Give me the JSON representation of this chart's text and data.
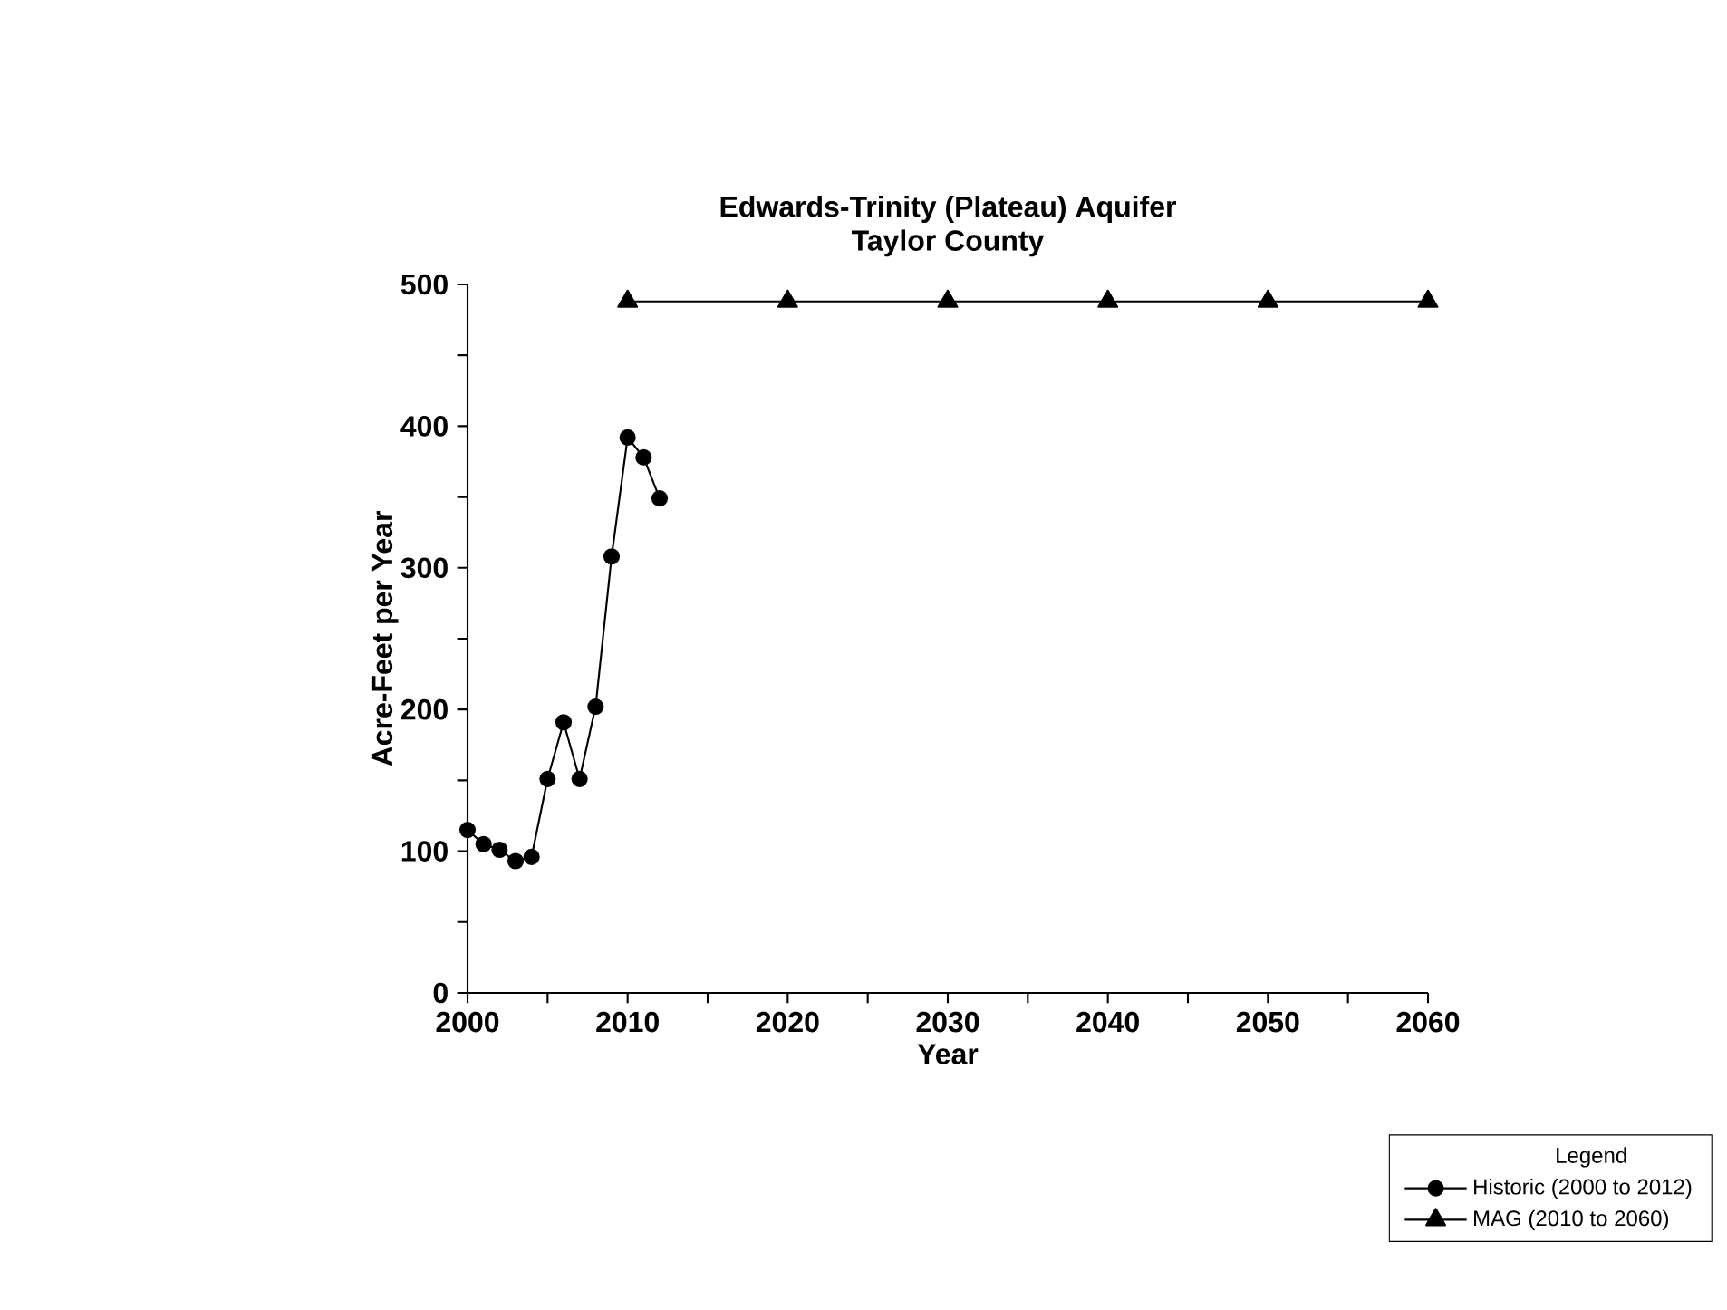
{
  "chart_data": {
    "type": "line",
    "title": "Edwards-Trinity (Plateau) Aquifer",
    "subtitle": "Taylor County",
    "xlabel": "Year",
    "ylabel": "Acre-Feet per Year",
    "legend_title": "Legend",
    "legend": "bottom right",
    "grid": false,
    "xlim": [
      2000,
      2060
    ],
    "ylim": [
      0,
      500
    ],
    "xticks": [
      2000,
      {
        "value": 2005,
        "label": null
      },
      2010,
      {
        "value": 2015,
        "label": null
      },
      2020,
      {
        "value": 2025,
        "label": null
      },
      2030,
      {
        "value": 2035,
        "label": null
      },
      2040,
      {
        "value": 2045,
        "label": null
      },
      2050,
      {
        "value": 2055,
        "label": null
      },
      2060
    ],
    "yticks": [
      0,
      {
        "value": 50,
        "label": null
      },
      100,
      {
        "value": 150,
        "label": null
      },
      200,
      {
        "value": 250,
        "label": null
      },
      300,
      {
        "value": 350,
        "label": null
      },
      400,
      {
        "value": 450,
        "label": null
      },
      500
    ],
    "series": [
      {
        "name": "Historic (2000 to 2012)",
        "color": "#000000",
        "marker": "circle",
        "x": [
          2000,
          2001,
          2002,
          2003,
          2004,
          2005,
          2006,
          2007,
          2008,
          2009,
          2010,
          2011,
          2012
        ],
        "values": [
          115,
          105,
          101,
          93,
          96,
          151,
          191,
          151,
          202,
          308,
          392,
          378,
          349
        ]
      },
      {
        "name": "MAG (2010 to 2060)",
        "color": "#000000",
        "marker": "triangle",
        "x": [
          2010,
          2020,
          2030,
          2040,
          2050,
          2060
        ],
        "values": [
          488,
          488,
          488,
          488,
          488,
          488
        ]
      }
    ]
  }
}
